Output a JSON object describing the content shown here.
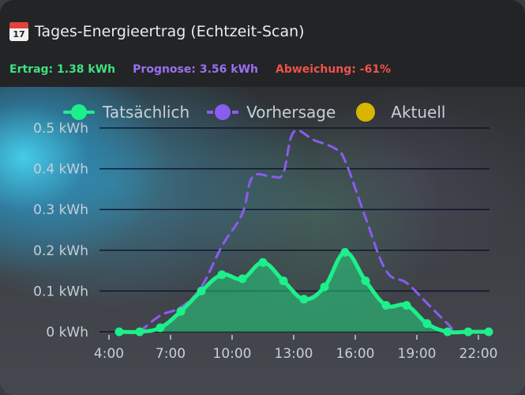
{
  "card": {
    "title_icon": "calendar-icon",
    "title_icon_day": "17",
    "title": "Tages-Energieertrag (Echtzeit-Scan)"
  },
  "stats": {
    "ertrag": "Ertrag: 1.38 kWh",
    "prognose": "Prognose: 3.56 kWh",
    "abweichung": "Abweichung: -61%"
  },
  "legend": {
    "actual": "Tatsächlich",
    "forecast": "Vorhersage",
    "current": "Aktuell"
  },
  "colors": {
    "actual": "#1df08a",
    "forecast": "#8a5cf0",
    "current": "#d9b400",
    "ertrag": "#3ee17f",
    "prognose": "#9b6ff2",
    "abweichung": "#f0514b"
  },
  "chart_data": {
    "type": "line",
    "y_unit": "kWh",
    "ylim": [
      0,
      0.5
    ],
    "yticks": [
      0,
      0.1,
      0.2,
      0.3,
      0.4,
      0.5
    ],
    "ytick_labels": [
      "0 kWh",
      "0.1 kWh",
      "0.2 kWh",
      "0.3 kWh",
      "0.4 kWh",
      "0.5 kWh"
    ],
    "xlim": [
      4,
      22
    ],
    "xticks": [
      4,
      7,
      10,
      13,
      16,
      19,
      22
    ],
    "xtick_labels": [
      "4:00",
      "7:00",
      "10:00",
      "13:00",
      "16:00",
      "19:00",
      "22:00"
    ],
    "grid": true,
    "legend_position": "top",
    "series": [
      {
        "name": "Tatsächlich",
        "style": "solid",
        "points": [
          [
            4.5,
            0.0
          ],
          [
            5.5,
            0.0
          ],
          [
            6.5,
            0.01
          ],
          [
            7.5,
            0.05
          ],
          [
            8.5,
            0.1
          ],
          [
            9.5,
            0.14
          ],
          [
            10.5,
            0.13
          ],
          [
            11.5,
            0.17
          ],
          [
            12.5,
            0.125
          ],
          [
            13.5,
            0.08
          ],
          [
            14.5,
            0.11
          ],
          [
            15.5,
            0.195
          ],
          [
            16.5,
            0.125
          ],
          [
            17.5,
            0.065
          ],
          [
            18.5,
            0.065
          ],
          [
            19.5,
            0.02
          ],
          [
            20.5,
            0.0
          ],
          [
            21.5,
            0.0
          ],
          [
            22.5,
            0.0
          ]
        ]
      },
      {
        "name": "Vorhersage",
        "style": "dashed",
        "points": [
          [
            5.5,
            0.0
          ],
          [
            6.5,
            0.04
          ],
          [
            7.5,
            0.06
          ],
          [
            8.5,
            0.11
          ],
          [
            9.5,
            0.21
          ],
          [
            10.5,
            0.29
          ],
          [
            11.0,
            0.38
          ],
          [
            12.0,
            0.38
          ],
          [
            12.5,
            0.39
          ],
          [
            13.0,
            0.49
          ],
          [
            14.0,
            0.47
          ],
          [
            15.0,
            0.45
          ],
          [
            15.5,
            0.42
          ],
          [
            16.5,
            0.28
          ],
          [
            17.5,
            0.15
          ],
          [
            18.5,
            0.12
          ],
          [
            19.5,
            0.07
          ],
          [
            20.5,
            0.02
          ],
          [
            21.0,
            0.0
          ],
          [
            22.5,
            0.0
          ]
        ]
      }
    ]
  }
}
